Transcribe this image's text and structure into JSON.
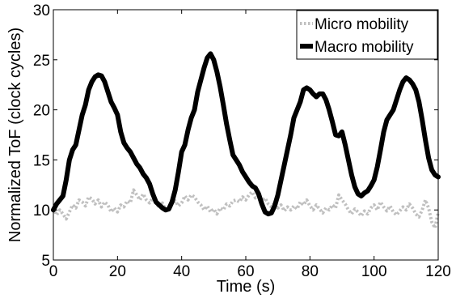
{
  "chart_data": {
    "type": "line",
    "xlabel": "Time (s)",
    "ylabel": "Normalized ToF (clock cycles)",
    "xlim": [
      0,
      120
    ],
    "ylim": [
      5,
      30
    ],
    "xticks": [
      0,
      20,
      40,
      60,
      80,
      100,
      120
    ],
    "yticks": [
      5,
      10,
      15,
      20,
      25,
      30
    ],
    "grid": false,
    "legend": "top-right",
    "series": [
      {
        "name": "Micro mobility",
        "color": "#c0c0c0",
        "style": "dotted",
        "x": [
          0,
          1,
          2,
          3,
          4,
          5,
          6,
          7,
          8,
          9,
          10,
          11,
          12,
          13,
          14,
          15,
          16,
          17,
          18,
          19,
          20,
          21,
          22,
          23,
          24,
          25,
          26,
          27,
          28,
          29,
          30,
          31,
          32,
          33,
          34,
          35,
          36,
          37,
          38,
          39,
          40,
          41,
          42,
          43,
          44,
          45,
          46,
          47,
          48,
          49,
          50,
          51,
          52,
          53,
          54,
          55,
          56,
          57,
          58,
          59,
          60,
          61,
          62,
          63,
          64,
          65,
          66,
          67,
          68,
          69,
          70,
          71,
          72,
          73,
          74,
          75,
          76,
          77,
          78,
          79,
          80,
          81,
          82,
          83,
          84,
          85,
          86,
          87,
          88,
          89,
          90,
          91,
          92,
          93,
          94,
          95,
          96,
          97,
          98,
          99,
          100,
          101,
          102,
          103,
          104,
          105,
          106,
          107,
          108,
          109,
          110,
          111,
          112,
          113,
          114,
          115,
          116,
          117,
          118,
          119,
          120
        ],
        "y": [
          10.2,
          9.5,
          10.0,
          9.6,
          9.1,
          9.8,
          10.5,
          10.2,
          11.0,
          10.8,
          10.4,
          11.3,
          11.1,
          10.6,
          11.0,
          10.3,
          10.8,
          10.5,
          9.8,
          10.2,
          9.8,
          10.5,
          10.3,
          10.9,
          10.7,
          12.0,
          11.5,
          11.0,
          11.6,
          11.0,
          10.7,
          11.2,
          10.8,
          10.2,
          10.7,
          10.0,
          10.3,
          10.6,
          10.9,
          10.4,
          10.7,
          11.4,
          11.0,
          11.5,
          11.3,
          10.8,
          10.5,
          10.0,
          10.4,
          9.8,
          10.1,
          9.6,
          10.2,
          10.0,
          10.6,
          10.4,
          10.9,
          11.0,
          10.8,
          11.3,
          11.0,
          11.5,
          11.8,
          11.2,
          11.6,
          10.9,
          11.2,
          10.6,
          10.3,
          10.7,
          10.2,
          10.5,
          9.9,
          10.3,
          10.0,
          10.4,
          10.1,
          10.8,
          10.5,
          11.0,
          10.4,
          10.0,
          10.5,
          10.1,
          9.7,
          10.2,
          10.0,
          10.5,
          10.2,
          11.5,
          11.0,
          10.6,
          10.0,
          9.6,
          10.1,
          9.8,
          9.4,
          9.9,
          9.6,
          10.2,
          10.5,
          10.0,
          10.8,
          10.3,
          9.9,
          10.4,
          9.8,
          9.5,
          9.9,
          10.3,
          10.0,
          10.6,
          10.2,
          9.6,
          9.3,
          10.0,
          11.0,
          10.2,
          8.8,
          8.2,
          9.8
        ]
      },
      {
        "name": "Macro mobility",
        "color": "#000000",
        "style": "solid",
        "x": [
          0,
          1,
          2,
          3,
          4,
          5,
          6,
          7,
          8,
          9,
          10,
          11,
          12,
          13,
          14,
          15,
          16,
          17,
          18,
          19,
          20,
          21,
          22,
          23,
          24,
          25,
          26,
          27,
          28,
          29,
          30,
          31,
          32,
          33,
          34,
          35,
          36,
          37,
          38,
          39,
          40,
          41,
          42,
          43,
          44,
          45,
          46,
          47,
          48,
          49,
          50,
          51,
          52,
          53,
          54,
          55,
          56,
          57,
          58,
          59,
          60,
          61,
          62,
          63,
          64,
          65,
          66,
          67,
          68,
          69,
          70,
          71,
          72,
          73,
          74,
          75,
          76,
          77,
          78,
          79,
          80,
          81,
          82,
          83,
          84,
          85,
          86,
          87,
          88,
          89,
          90,
          91,
          92,
          93,
          94,
          95,
          96,
          97,
          98,
          99,
          100,
          101,
          102,
          103,
          104,
          105,
          106,
          107,
          108,
          109,
          110,
          111,
          112,
          113,
          114,
          115,
          116,
          117,
          118,
          119,
          120
        ],
        "y": [
          10.0,
          10.6,
          11.0,
          11.4,
          13.0,
          15.0,
          16.0,
          16.5,
          18.0,
          19.5,
          20.5,
          22.0,
          22.8,
          23.3,
          23.5,
          23.4,
          22.8,
          21.8,
          20.8,
          20.2,
          19.5,
          17.8,
          16.7,
          16.2,
          15.8,
          15.2,
          14.6,
          14.2,
          13.6,
          13.2,
          12.6,
          11.6,
          10.8,
          10.5,
          10.2,
          10.0,
          10.1,
          10.8,
          12.0,
          13.8,
          15.8,
          16.5,
          18.0,
          19.2,
          20.0,
          21.8,
          23.0,
          24.2,
          25.2,
          25.6,
          25.0,
          23.8,
          22.3,
          20.5,
          18.6,
          17.0,
          15.5,
          15.0,
          14.5,
          13.8,
          13.3,
          12.8,
          12.4,
          12.2,
          11.6,
          10.6,
          9.8,
          9.6,
          9.7,
          10.4,
          11.5,
          13.0,
          14.5,
          16.0,
          17.5,
          19.2,
          20.0,
          20.8,
          22.0,
          22.2,
          22.0,
          21.6,
          21.3,
          21.6,
          21.6,
          21.0,
          20.0,
          18.8,
          17.5,
          17.4,
          17.8,
          16.5,
          15.0,
          13.5,
          12.3,
          11.6,
          11.4,
          11.7,
          11.9,
          12.4,
          13.0,
          14.3,
          16.0,
          17.8,
          19.0,
          19.5,
          20.0,
          21.0,
          22.0,
          22.8,
          23.2,
          23.0,
          22.6,
          22.0,
          20.8,
          19.0,
          17.0,
          15.2,
          14.0,
          13.5,
          13.3
        ]
      }
    ]
  }
}
